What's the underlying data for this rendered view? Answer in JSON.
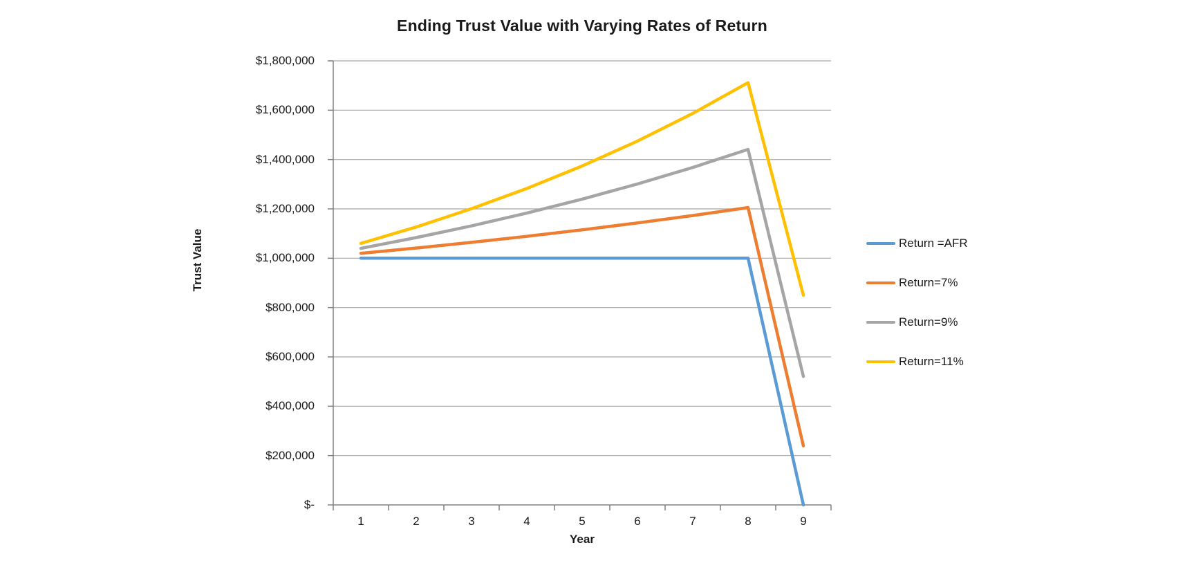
{
  "chart_data": {
    "type": "line",
    "title": "Ending Trust Value with Varying Rates of Return",
    "xlabel": "Year",
    "ylabel": "Trust Value",
    "categories": [
      1,
      2,
      3,
      4,
      5,
      6,
      7,
      8,
      9
    ],
    "series": [
      {
        "name": "Return =AFR",
        "color": "#5B9BD5",
        "values": [
          1000000,
          1000000,
          1000000,
          1000000,
          1000000,
          1000000,
          1000000,
          1000000,
          0
        ]
      },
      {
        "name": "Return=7%",
        "color": "#ED7D31",
        "values": [
          1020000,
          1041400,
          1064300,
          1088800,
          1115000,
          1143100,
          1173100,
          1205200,
          239500
        ]
      },
      {
        "name": "Return=9%",
        "color": "#A5A5A5",
        "values": [
          1040000,
          1083600,
          1131100,
          1182900,
          1239400,
          1300900,
          1368000,
          1441100,
          520800
        ]
      },
      {
        "name": "Return=11%",
        "color": "#FFC000",
        "values": [
          1060000,
          1126600,
          1200500,
          1282600,
          1373700,
          1474800,
          1587000,
          1711700,
          850000
        ]
      }
    ],
    "ylim": [
      0,
      1800000
    ],
    "ytick_step": 200000,
    "ytick_labels": [
      "$-",
      "$200,000",
      "$400,000",
      "$600,000",
      "$800,000",
      "$1,000,000",
      "$1,200,000",
      "$1,400,000",
      "$1,600,000",
      "$1,800,000"
    ],
    "grid": true,
    "legend_position": "right",
    "colors": {
      "grid": "#a6a6a6",
      "axis": "#808080",
      "text": "#1a1a1a",
      "background": "#ffffff"
    }
  }
}
